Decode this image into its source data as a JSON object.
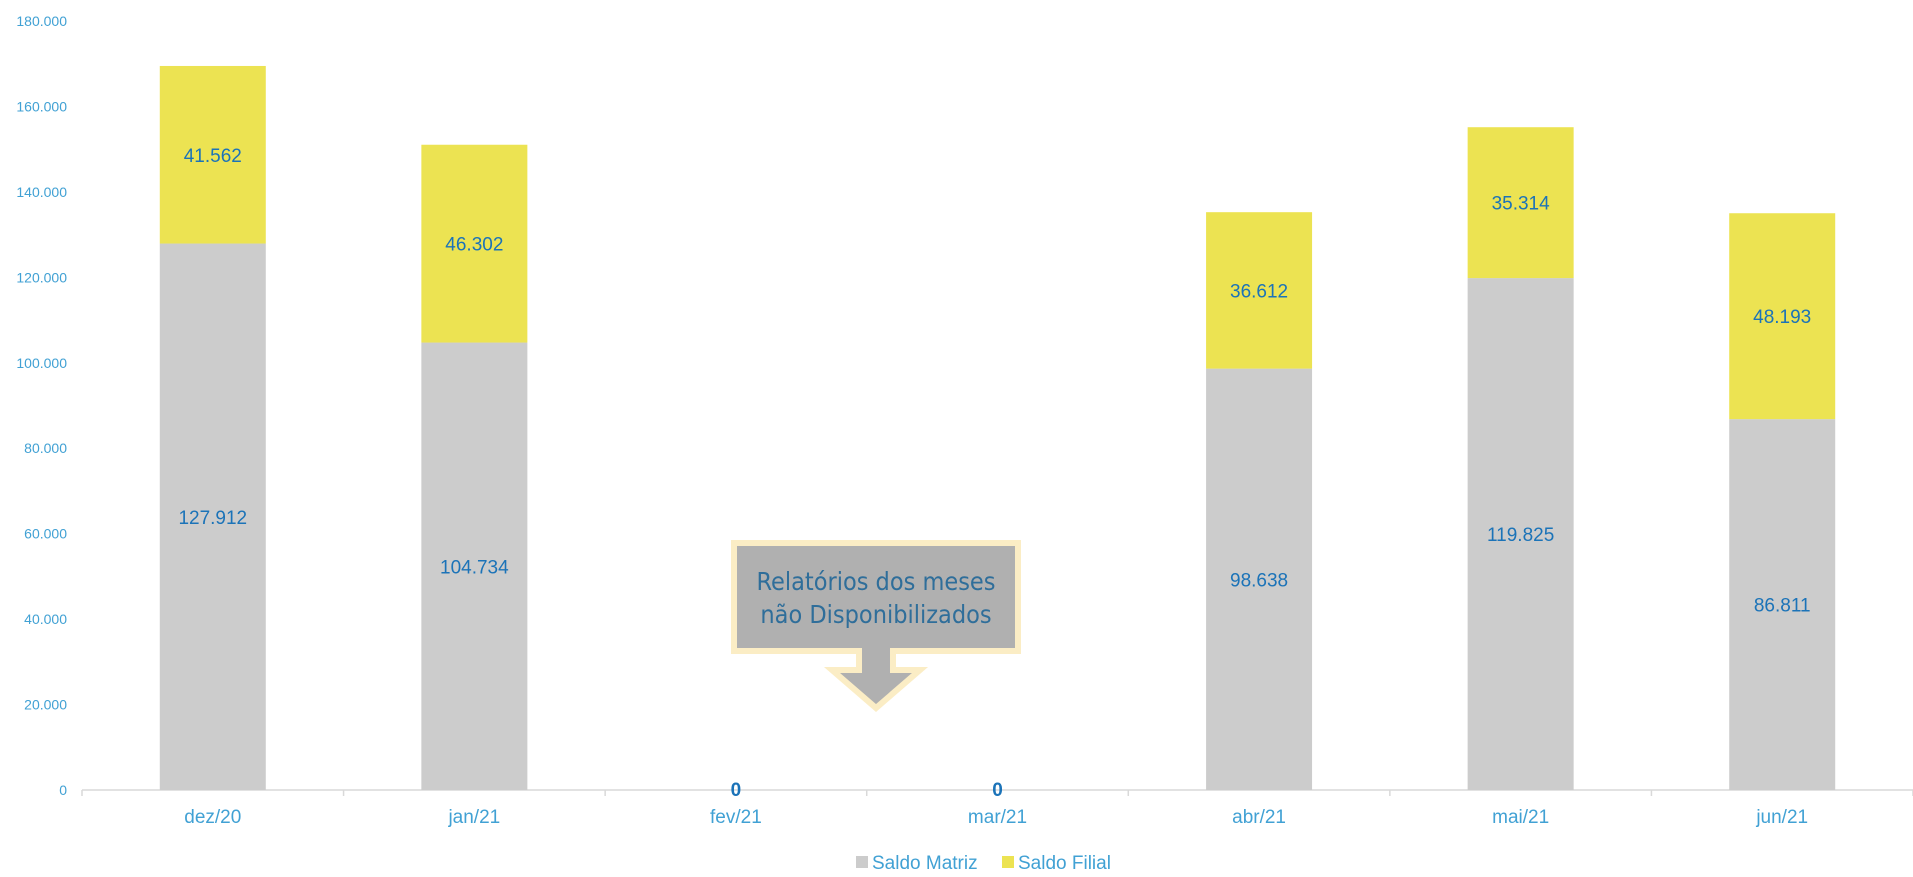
{
  "chart_data": {
    "type": "bar",
    "stacked": true,
    "categories": [
      "dez/20",
      "jan/21",
      "fev/21",
      "mar/21",
      "abr/21",
      "mai/21",
      "jun/21"
    ],
    "series": [
      {
        "name": "Saldo Matriz",
        "color": "#cccccc",
        "values": [
          127912,
          104734,
          0,
          0,
          98638,
          119825,
          86811
        ],
        "labels": [
          "127.912",
          "104.734",
          "",
          "",
          "98.638",
          "119.825",
          "86.811"
        ]
      },
      {
        "name": "Saldo Filial",
        "color": "#ece352",
        "values": [
          41562,
          46302,
          0,
          0,
          36612,
          35314,
          48193
        ],
        "labels": [
          "41.562",
          "46.302",
          "",
          "",
          "36.612",
          "35.314",
          "48.193"
        ]
      }
    ],
    "zero_labels": [
      "",
      "",
      "0",
      "0",
      "",
      "",
      ""
    ],
    "ylim": [
      0,
      180000
    ],
    "yticks": [
      0,
      20000,
      40000,
      60000,
      80000,
      100000,
      120000,
      140000,
      160000,
      180000
    ],
    "ytick_labels": [
      "0",
      "20.000",
      "40.000",
      "60.000",
      "80.000",
      "100.000",
      "120.000",
      "140.000",
      "160.000",
      "180.000"
    ],
    "grid": false,
    "legend": "bottom-center",
    "annotation": {
      "lines": [
        "Relatórios dos meses",
        "não Disponibilizados"
      ],
      "fill": "#b0b0b0",
      "border": "#fbedc5"
    },
    "colors": {
      "axis_text": "#41a1d4",
      "data_label": "#1b73b8",
      "axis_line": "#d9d9d9"
    }
  }
}
